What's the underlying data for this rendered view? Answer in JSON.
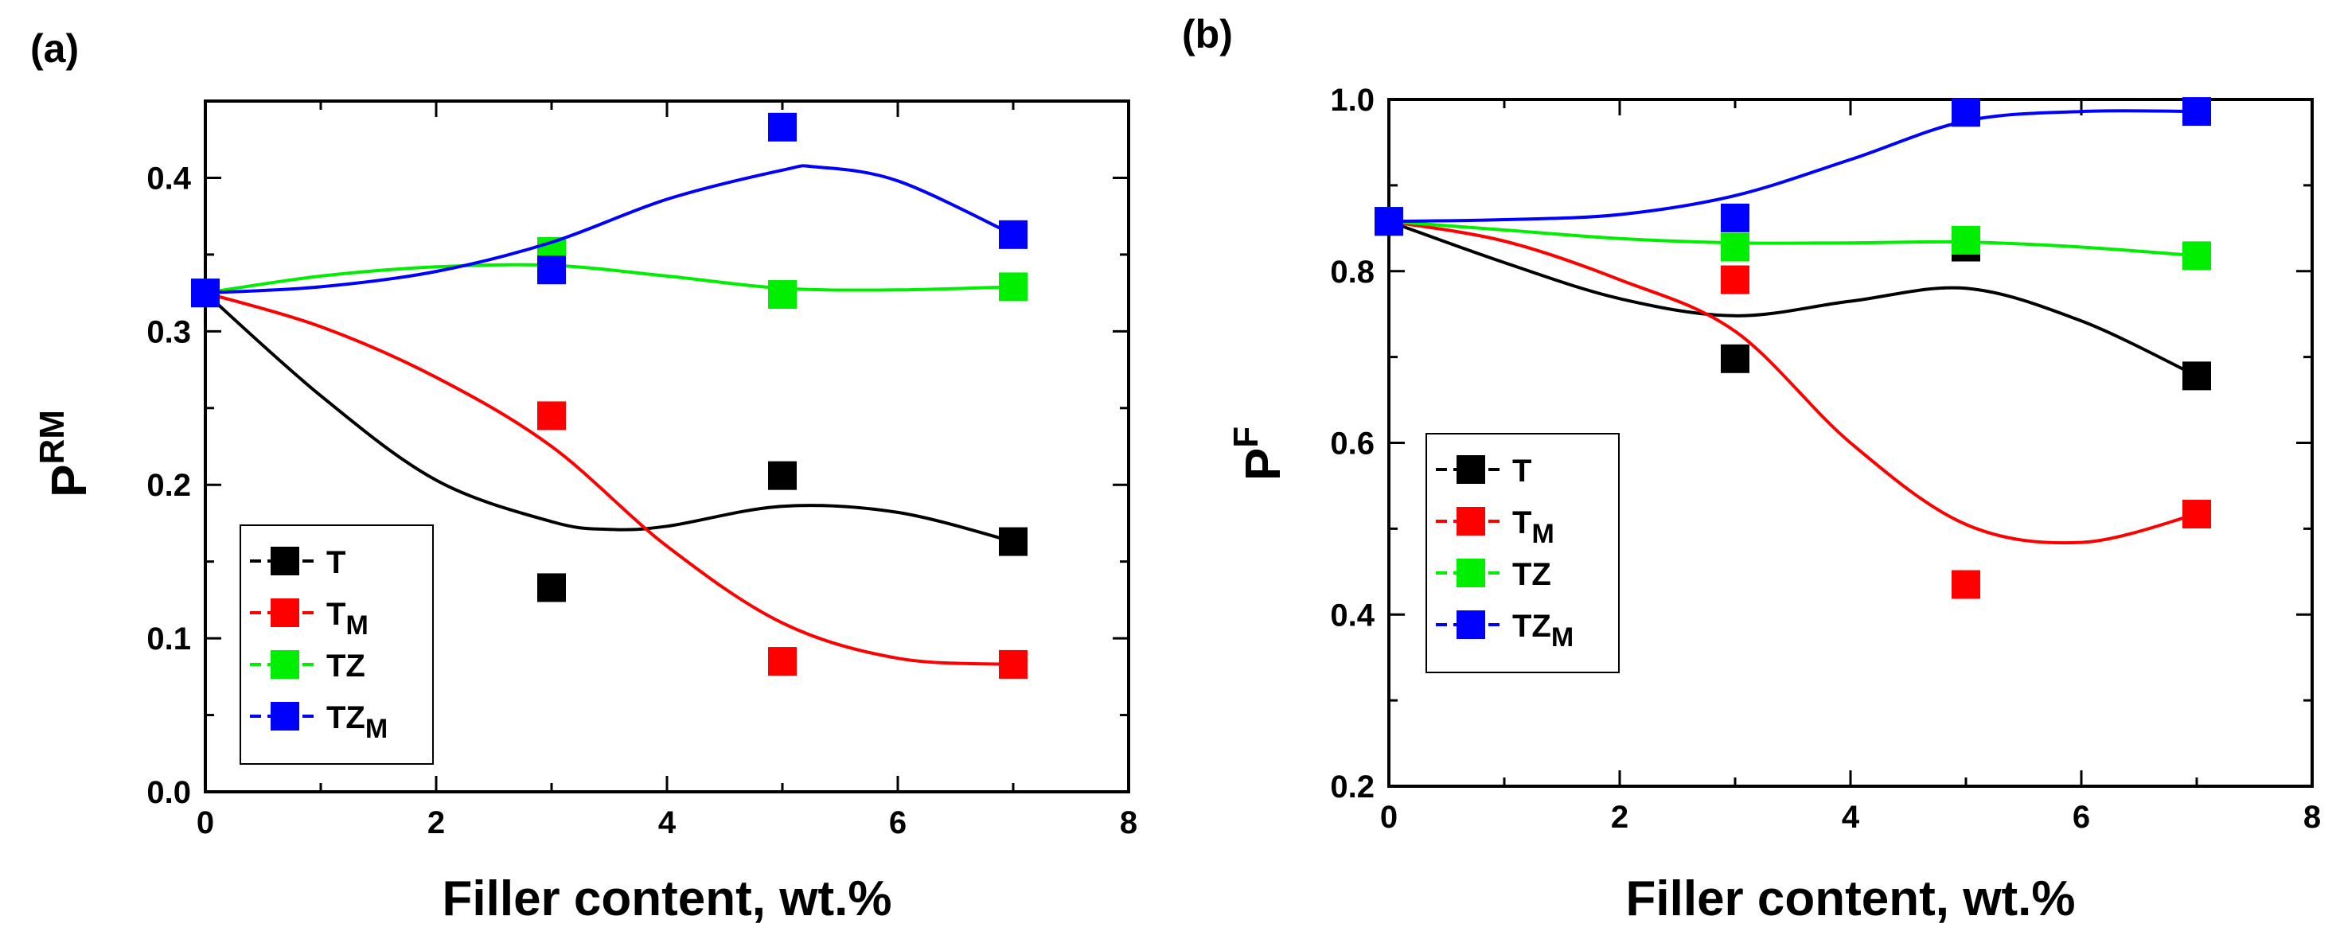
{
  "chart_data": [
    {
      "type": "scatter",
      "panel_label": "(a)",
      "xlabel": "Filler content, wt.%",
      "ylabel_base": "P",
      "ylabel_sup": "RM",
      "xlim": [
        0,
        8
      ],
      "ylim": [
        0,
        0.45
      ],
      "xticks": [
        0,
        2,
        4,
        6,
        8
      ],
      "xtick_labels": [
        "0",
        "2",
        "4",
        "6",
        "8"
      ],
      "yticks": [
        0,
        0.1,
        0.2,
        0.3,
        0.4
      ],
      "ytick_labels": [
        "0.0",
        "0.1",
        "0.2",
        "0.3",
        "0.4"
      ],
      "grid": false,
      "legend_position": "bottom-left",
      "series": [
        {
          "name": "T",
          "label_main": "T",
          "label_sub": "",
          "color": "#000000",
          "x": [
            0,
            3,
            5,
            7
          ],
          "y": [
            0.325,
            0.133,
            0.206,
            0.163
          ],
          "curve_x": [
            0,
            1,
            2,
            3,
            3.5,
            4,
            5,
            6,
            7
          ],
          "curve_y": [
            0.325,
            0.258,
            0.203,
            0.176,
            0.171,
            0.173,
            0.186,
            0.182,
            0.163
          ]
        },
        {
          "name": "TM",
          "label_main": "T",
          "label_sub": "M",
          "color": "#ff0000",
          "x": [
            0,
            3,
            5,
            7
          ],
          "y": [
            0.325,
            0.245,
            0.085,
            0.083
          ],
          "curve_x": [
            0,
            1,
            2,
            3,
            4,
            5,
            6,
            7
          ],
          "curve_y": [
            0.325,
            0.303,
            0.27,
            0.225,
            0.16,
            0.11,
            0.087,
            0.083
          ]
        },
        {
          "name": "TZ",
          "label_main": "TZ",
          "label_sub": "",
          "color": "#00ee00",
          "x": [
            0,
            3,
            5,
            7
          ],
          "y": [
            0.325,
            0.352,
            0.324,
            0.329
          ],
          "curve_x": [
            0,
            1,
            2,
            3,
            4,
            5,
            6,
            7
          ],
          "curve_y": [
            0.325,
            0.336,
            0.342,
            0.343,
            0.336,
            0.328,
            0.327,
            0.329
          ]
        },
        {
          "name": "TZM",
          "label_main": "TZ",
          "label_sub": "M",
          "color": "#0000ff",
          "x": [
            0,
            3,
            5,
            7
          ],
          "y": [
            0.325,
            0.34,
            0.433,
            0.363
          ],
          "curve_x": [
            0,
            1,
            2,
            3,
            4,
            5,
            5.3,
            6,
            7
          ],
          "curve_y": [
            0.325,
            0.329,
            0.339,
            0.358,
            0.386,
            0.405,
            0.407,
            0.398,
            0.363
          ]
        }
      ]
    },
    {
      "type": "scatter",
      "panel_label": "(b)",
      "xlabel": "Filler content, wt.%",
      "ylabel_base": "P",
      "ylabel_sup": "F",
      "xlim": [
        0,
        8
      ],
      "ylim": [
        0.2,
        1.0
      ],
      "xticks": [
        0,
        2,
        4,
        6,
        8
      ],
      "xtick_labels": [
        "0",
        "2",
        "4",
        "6",
        "8"
      ],
      "yticks": [
        0.2,
        0.4,
        0.6,
        0.8,
        1.0
      ],
      "ytick_labels": [
        "0.2",
        "0.4",
        "0.6",
        "0.8",
        "1.0"
      ],
      "grid": false,
      "legend_position": "middle-left",
      "series": [
        {
          "name": "T",
          "label_main": "T",
          "label_sub": "",
          "color": "#000000",
          "x": [
            0,
            3,
            5,
            7
          ],
          "y": [
            0.858,
            0.698,
            0.828,
            0.678
          ],
          "curve_x": [
            0,
            1,
            2,
            3,
            4,
            5,
            6,
            7
          ],
          "curve_y": [
            0.858,
            0.81,
            0.768,
            0.748,
            0.765,
            0.78,
            0.742,
            0.678
          ]
        },
        {
          "name": "TM",
          "label_main": "T",
          "label_sub": "M",
          "color": "#ff0000",
          "x": [
            0,
            3,
            5,
            7
          ],
          "y": [
            0.858,
            0.79,
            0.435,
            0.517
          ],
          "curve_x": [
            0,
            1,
            2,
            3,
            4,
            5,
            6,
            7
          ],
          "curve_y": [
            0.858,
            0.835,
            0.79,
            0.73,
            0.6,
            0.505,
            0.484,
            0.517
          ]
        },
        {
          "name": "TZ",
          "label_main": "TZ",
          "label_sub": "",
          "color": "#00ee00",
          "x": [
            0,
            3,
            5,
            7
          ],
          "y": [
            0.858,
            0.828,
            0.836,
            0.818
          ],
          "curve_x": [
            0,
            1,
            2,
            3,
            4,
            5,
            6,
            7
          ],
          "curve_y": [
            0.858,
            0.848,
            0.838,
            0.833,
            0.833,
            0.834,
            0.828,
            0.818
          ]
        },
        {
          "name": "TZM",
          "label_main": "TZ",
          "label_sub": "M",
          "color": "#0000ff",
          "x": [
            0,
            3,
            5,
            7
          ],
          "y": [
            0.858,
            0.862,
            0.985,
            0.986
          ],
          "curve_x": [
            0,
            1,
            2,
            3,
            4,
            5,
            6,
            7
          ],
          "curve_y": [
            0.858,
            0.86,
            0.866,
            0.888,
            0.93,
            0.975,
            0.986,
            0.986
          ]
        }
      ]
    }
  ]
}
